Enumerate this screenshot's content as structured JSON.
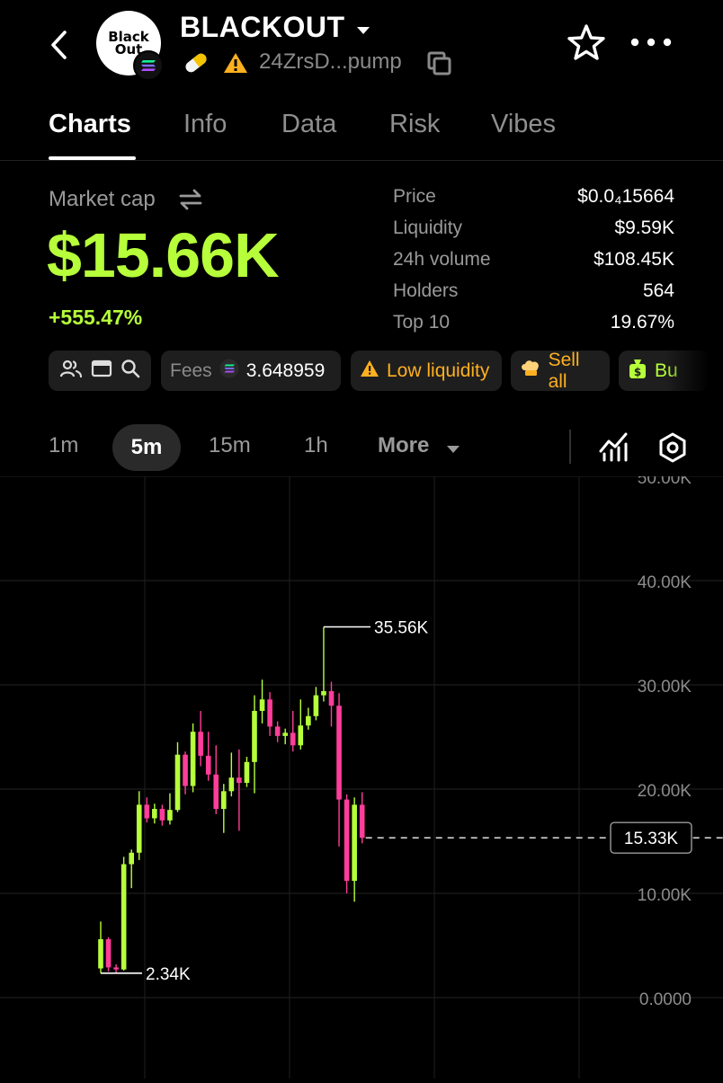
{
  "header": {
    "token_name": "BLACKOUT",
    "address": "24ZrsD...pump",
    "avatar_line1": "Black",
    "avatar_line2": "Out"
  },
  "tabs": [
    {
      "label": "Charts",
      "active": true
    },
    {
      "label": "Info",
      "active": false
    },
    {
      "label": "Data",
      "active": false
    },
    {
      "label": "Risk",
      "active": false
    },
    {
      "label": "Vibes",
      "active": false
    }
  ],
  "market": {
    "label": "Market cap",
    "value": "$15.66K",
    "change": "+555.47%"
  },
  "stats": [
    {
      "label": "Price",
      "value": "$0.0₄15664"
    },
    {
      "label": "Liquidity",
      "value": "$9.59K"
    },
    {
      "label": "24h volume",
      "value": "$108.45K"
    },
    {
      "label": "Holders",
      "value": "564"
    },
    {
      "label": "Top 10",
      "value": "19.67%"
    }
  ],
  "chips": {
    "fees_label": "Fees",
    "fees_value": "3.648959",
    "low_liquidity": "Low liquidity",
    "sell_all": "Sell all",
    "buy": "Bu"
  },
  "timeframes": {
    "options": [
      "1m",
      "5m",
      "15m",
      "1h"
    ],
    "selected": "5m",
    "more": "More"
  },
  "colors": {
    "accent_green": "#b6ff3a",
    "warning": "#ffb020",
    "candle_up": "#b6ff3a",
    "candle_down": "#ff3d9a"
  },
  "chart_data": {
    "type": "candlestick",
    "y_axis_labels": [
      "50.00K",
      "40.00K",
      "30.00K",
      "20.00K",
      "10.00K",
      "0.0000"
    ],
    "y_ticks": [
      50000,
      40000,
      30000,
      20000,
      10000,
      0
    ],
    "ylim": [
      0,
      50000
    ],
    "high_label": "35.56K",
    "high_value": 35560,
    "low_label": "2.34K",
    "low_value": 2340,
    "current_label": "15.33K",
    "current_value": 15330,
    "candles": [
      [
        2800,
        7300,
        2340,
        5600
      ],
      [
        5600,
        5800,
        2500,
        2900
      ],
      [
        2900,
        3200,
        2400,
        2700
      ],
      [
        2700,
        13500,
        2600,
        12800
      ],
      [
        12800,
        14200,
        10500,
        13900
      ],
      [
        13900,
        19800,
        13200,
        18500
      ],
      [
        18500,
        19200,
        16800,
        17200
      ],
      [
        17200,
        18600,
        16700,
        18100
      ],
      [
        18100,
        18500,
        16500,
        17000
      ],
      [
        17000,
        19600,
        16600,
        18000
      ],
      [
        18000,
        24500,
        17800,
        23300
      ],
      [
        23300,
        23600,
        19500,
        20300
      ],
      [
        20300,
        26300,
        19700,
        25500
      ],
      [
        25500,
        27500,
        22200,
        23200
      ],
      [
        23200,
        25500,
        20800,
        21400
      ],
      [
        21400,
        24200,
        17600,
        18100
      ],
      [
        18100,
        20500,
        15800,
        19800
      ],
      [
        19800,
        23500,
        19300,
        21100
      ],
      [
        21100,
        23800,
        16000,
        20600
      ],
      [
        20600,
        23100,
        20200,
        22600
      ],
      [
        22600,
        29000,
        19600,
        27500
      ],
      [
        27500,
        30500,
        26300,
        28600
      ],
      [
        28600,
        29300,
        25100,
        26000
      ],
      [
        26000,
        26500,
        24500,
        25100
      ],
      [
        25100,
        25800,
        24300,
        25400
      ],
      [
        25400,
        27500,
        23600,
        24200
      ],
      [
        24200,
        28600,
        23800,
        26100
      ],
      [
        26100,
        27800,
        25700,
        27000
      ],
      [
        27000,
        29800,
        26600,
        29000
      ],
      [
        29000,
        35560,
        28400,
        29400
      ],
      [
        29400,
        30300,
        26000,
        28000
      ],
      [
        28000,
        29200,
        14500,
        19000
      ],
      [
        19000,
        19500,
        10000,
        11200
      ],
      [
        11200,
        19200,
        9200,
        18500
      ],
      [
        18500,
        19700,
        14800,
        15330
      ]
    ]
  }
}
